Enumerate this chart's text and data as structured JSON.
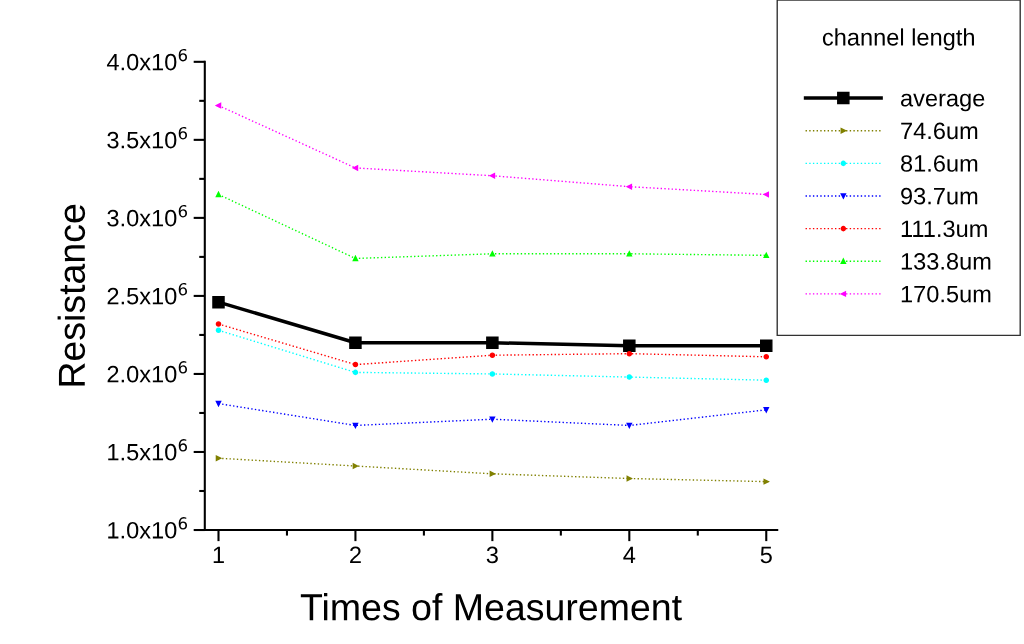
{
  "chart_data": {
    "type": "line",
    "xlabel": "Times of Measurement",
    "ylabel": "Resistance",
    "legend_title": "channel length",
    "legend": "right",
    "x": [
      1,
      2,
      3,
      4,
      5
    ],
    "xlim": [
      0.9,
      5.08
    ],
    "xticks": [
      1,
      2,
      3,
      4,
      5
    ],
    "ylim": [
      1000000,
      4000000
    ],
    "yticks": [
      {
        "value": 1000000,
        "label": "1.0x10$^{6}$"
      },
      {
        "value": 1500000,
        "label": "1.5x10$^{6}$"
      },
      {
        "value": 2000000,
        "label": "2.0x10$^{6}$"
      },
      {
        "value": 2500000,
        "label": "2.5x10$^{6}$"
      },
      {
        "value": 3000000,
        "label": "3.0x10$^{6}$"
      },
      {
        "value": 3500000,
        "label": "3.5x10$^{6}$"
      },
      {
        "value": 4000000,
        "label": "4.0x10$^{6}$"
      }
    ],
    "grid": false,
    "series": [
      {
        "name": "average",
        "color": "#000000",
        "marker": "square",
        "line_style": "solid",
        "values": [
          2460000,
          2200000,
          2200000,
          2180000,
          2180000
        ]
      },
      {
        "name": "74.6um",
        "color": "#808000",
        "marker": "triangle_right",
        "line_style": "dotted",
        "values": [
          1460000,
          1410000,
          1360000,
          1330000,
          1310000
        ]
      },
      {
        "name": "81.6um",
        "color": "#00ffff",
        "marker": "circle",
        "line_style": "dotted",
        "values": [
          2280000,
          2010000,
          2000000,
          1980000,
          1960000
        ]
      },
      {
        "name": "93.7um",
        "color": "#0000ff",
        "marker": "triangle_down",
        "line_style": "dotted",
        "values": [
          1810000,
          1670000,
          1710000,
          1670000,
          1770000
        ]
      },
      {
        "name": "111.3um",
        "color": "#ff0000",
        "marker": "circle",
        "line_style": "dotted",
        "values": [
          2320000,
          2060000,
          2120000,
          2130000,
          2110000
        ]
      },
      {
        "name": "133.8um",
        "color": "#00ff00",
        "marker": "triangle",
        "line_style": "dotted",
        "values": [
          3150000,
          2740000,
          2770000,
          2770000,
          2760000
        ]
      },
      {
        "name": "170.5um",
        "color": "#ff00ff",
        "marker": "triangle_left",
        "line_style": "dotted",
        "values": [
          3720000,
          3320000,
          3270000,
          3200000,
          3150000
        ]
      }
    ]
  }
}
